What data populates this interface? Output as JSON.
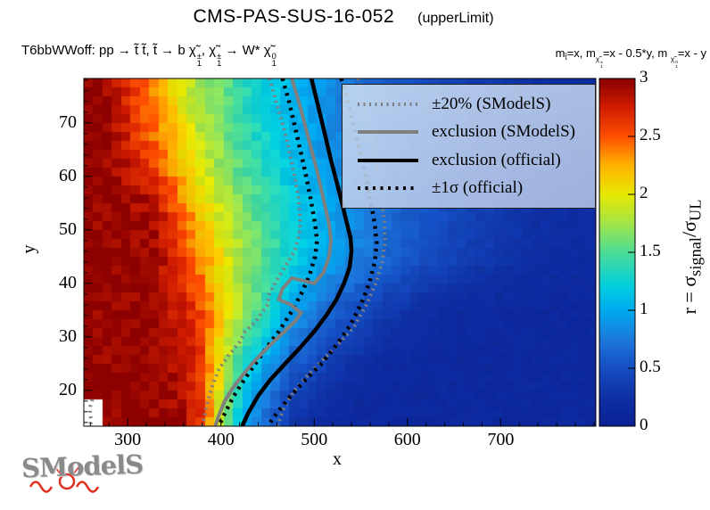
{
  "title": {
    "main": "CMS-PAS-SUS-16-052",
    "sub": "(upperLimit)"
  },
  "process_label": {
    "text": "T6bbWWoff: pp → t̃ t̃, t̃ → b χ̃1±, χ̃1± → W* χ̃10",
    "runs": [
      {
        "t": "T6bbWWoff: pp  → t̃ t̃, t̃  → b "
      },
      {
        "t": "χ̃",
        "sup": "±",
        "sub": "1"
      },
      {
        "t": ", "
      },
      {
        "t": "χ̃",
        "sup": "±",
        "sub": "1"
      },
      {
        "t": " → W* "
      },
      {
        "t": "χ̃",
        "sup": "0",
        "sub": "1"
      }
    ]
  },
  "mass_label": {
    "text": "mt̃=x, mχ̃1±=x - 0.5*y, mχ̃10=x - y",
    "runs": [
      {
        "t": "m"
      },
      {
        "t": "t̃",
        "sc": 0.62,
        "va": -0.35
      },
      {
        "t": "=x, m"
      },
      {
        "t": "χ̃",
        "sup": "±",
        "sub": "1",
        "sc": 0.62,
        "va": -0.6
      },
      {
        "t": "=x - 0.5*y, m "
      },
      {
        "t": "χ̃",
        "sup": "0",
        "sub": "1",
        "sc": 0.62,
        "va": -0.6
      },
      {
        "t": "=x - y"
      }
    ]
  },
  "watermark": {
    "text": "SModelS",
    "accent_color": "#e03020",
    "text_color": "#8a8a8a"
  },
  "legend": {
    "background": "rgba(205,223,243,0.87)",
    "background2": "rgba(180,196,229,0.87)",
    "items": [
      {
        "label": "±20% (SModelS)",
        "color": "#7f7f7f",
        "dash": "2 4.5",
        "lw": 4
      },
      {
        "label": "exclusion (SModelS)",
        "color": "#7f7f7f",
        "dash": "",
        "lw": 4
      },
      {
        "label": "exclusion (official)",
        "color": "#000000",
        "dash": "",
        "lw": 4
      },
      {
        "label": "±1σ (official)",
        "color": "#000000",
        "dash": "3 5.5",
        "lw": 4
      }
    ]
  },
  "chart_data": {
    "type": "heatmap",
    "title": "CMS-PAS-SUS-16-052 (upperLimit)",
    "xlabel": "x",
    "ylabel": "y",
    "zlabel": "r = σsignal/σUL",
    "zlabel_runs": [
      {
        "t": "r = σ"
      },
      {
        "t": "",
        "sub": "signal"
      },
      {
        "t": "/σ"
      },
      {
        "t": "",
        "sub": "UL"
      }
    ],
    "xlim": [
      253,
      802
    ],
    "ylim": [
      13.3,
      78.3
    ],
    "zlim": [
      0,
      3
    ],
    "x_ticks": [
      300,
      400,
      500,
      600,
      700
    ],
    "x_minor_step": 20,
    "y_ticks": [
      20,
      30,
      40,
      50,
      60,
      70
    ],
    "y_minor_step": 2,
    "z_ticks": [
      0,
      0.5,
      1,
      1.5,
      2,
      2.5,
      3
    ],
    "grid": true,
    "legend_position": "top-right-inside",
    "bin_size": {
      "x": 10,
      "y": 1.6667
    },
    "grid_x": [
      275,
      325,
      375,
      425,
      475,
      525,
      575,
      625,
      675,
      725,
      775
    ],
    "grid_y": [
      15,
      25,
      35,
      45,
      55,
      65,
      75
    ],
    "r_values": [
      [
        3.0,
        3.0,
        2.8,
        0.95,
        0.31,
        0.13,
        0.12,
        0.12,
        0.12,
        0.12,
        0.12
      ],
      [
        3.0,
        3.0,
        2.71,
        1.3,
        0.6,
        0.3,
        0.16,
        0.13,
        0.12,
        0.12,
        0.12
      ],
      [
        3.0,
        3.0,
        2.6,
        1.7,
        0.99,
        0.58,
        0.34,
        0.2,
        0.15,
        0.13,
        0.12
      ],
      [
        3.0,
        3.0,
        2.39,
        1.73,
        1.25,
        0.91,
        0.65,
        0.47,
        0.34,
        0.25,
        0.18
      ],
      [
        3.0,
        2.88,
        2.16,
        1.61,
        1.22,
        0.91,
        0.69,
        0.52,
        0.39,
        0.29,
        0.22
      ],
      [
        3.0,
        2.53,
        1.91,
        1.44,
        1.09,
        0.82,
        0.62,
        0.47,
        0.35,
        0.27,
        0.2
      ],
      [
        3.0,
        2.37,
        1.8,
        1.37,
        1.04,
        0.79,
        0.6,
        0.46,
        0.35,
        0.26,
        0.2
      ]
    ],
    "palette": [
      [
        0.0,
        "#0b2296"
      ],
      [
        0.08,
        "#0e2fa4"
      ],
      [
        0.17,
        "#1550c4"
      ],
      [
        0.25,
        "#1c7adc"
      ],
      [
        0.33,
        "#00a8ee"
      ],
      [
        0.4,
        "#00cfe2"
      ],
      [
        0.5,
        "#4cdc96"
      ],
      [
        0.58,
        "#9fe44c"
      ],
      [
        0.667,
        "#e8e800"
      ],
      [
        0.75,
        "#ffb400"
      ],
      [
        0.833,
        "#ff4f00"
      ],
      [
        0.92,
        "#d01c00"
      ],
      [
        1.0,
        "#8b0000"
      ]
    ],
    "masked_region": {
      "x": [
        253,
        272.5
      ],
      "y": [
        13.3,
        18.4
      ]
    },
    "contours": [
      {
        "name": "pm20_low",
        "legend": "±20% (SModelS)",
        "color": "#7f7f7f",
        "lw": 4,
        "dash": "2 4.5",
        "points": [
          [
            452,
            78.3
          ],
          [
            459,
            74
          ],
          [
            466,
            70
          ],
          [
            473,
            65
          ],
          [
            479,
            60
          ],
          [
            483,
            56
          ],
          [
            485,
            52
          ],
          [
            484,
            49
          ],
          [
            479,
            46
          ],
          [
            470,
            43.5
          ],
          [
            458,
            40
          ],
          [
            452,
            38
          ],
          [
            450,
            36
          ],
          [
            438,
            33
          ],
          [
            426,
            31
          ],
          [
            420,
            29
          ],
          [
            408,
            26.5
          ],
          [
            398,
            24
          ],
          [
            391,
            21
          ],
          [
            386,
            18
          ],
          [
            382,
            15
          ],
          [
            380,
            13.3
          ]
        ]
      },
      {
        "name": "pm20_high",
        "legend": "±20% (SModelS)",
        "color": "#7f7f7f",
        "lw": 4,
        "dash": "2 4.5",
        "points": [
          [
            547,
            78.3
          ],
          [
            553,
            74
          ],
          [
            559,
            69
          ],
          [
            566,
            63
          ],
          [
            571,
            57
          ],
          [
            575,
            52
          ],
          [
            576,
            48
          ],
          [
            573,
            44
          ],
          [
            566,
            40
          ],
          [
            556,
            36
          ],
          [
            543,
            32
          ],
          [
            528,
            29
          ],
          [
            511,
            26
          ],
          [
            494,
            23
          ],
          [
            479,
            20
          ],
          [
            468,
            17
          ],
          [
            462,
            14
          ],
          [
            461,
            13.3
          ]
        ]
      },
      {
        "name": "pm20_fragment",
        "legend": "±20% (SModelS)",
        "color": "#7f7f7f",
        "lw": 4,
        "dash": "2 4.5",
        "points": [
          [
            262,
            18.3
          ],
          [
            260,
            17
          ],
          [
            259.5,
            15.5
          ],
          [
            261,
            14.5
          ],
          [
            260,
            13.5
          ]
        ]
      },
      {
        "name": "pm1sigma_low",
        "legend": "±1σ (official)",
        "color": "#000000",
        "lw": 4.5,
        "dash": "3 5.5",
        "points": [
          [
            466,
            78.3
          ],
          [
            473,
            74
          ],
          [
            481,
            68
          ],
          [
            489,
            62
          ],
          [
            496,
            56
          ],
          [
            501,
            51
          ],
          [
            503,
            48
          ],
          [
            501,
            45
          ],
          [
            495,
            41.5
          ],
          [
            486,
            38
          ],
          [
            475,
            34.5
          ],
          [
            462,
            31
          ],
          [
            449,
            28
          ],
          [
            437,
            25
          ],
          [
            425,
            22
          ],
          [
            414,
            19
          ],
          [
            405,
            16
          ],
          [
            399,
            13.8
          ],
          [
            398,
            13.3
          ]
        ]
      },
      {
        "name": "pm1sigma_high",
        "legend": "±1σ (official)",
        "color": "#000000",
        "lw": 4.5,
        "dash": "3 5.5",
        "points": [
          [
            529,
            78.3
          ],
          [
            536,
            74
          ],
          [
            544,
            68
          ],
          [
            553,
            62
          ],
          [
            560,
            56
          ],
          [
            565,
            51
          ],
          [
            567,
            47.5
          ],
          [
            565,
            44
          ],
          [
            559,
            40
          ],
          [
            550,
            36
          ],
          [
            538,
            32
          ],
          [
            524,
            28.5
          ],
          [
            508,
            25
          ],
          [
            491,
            22
          ],
          [
            475,
            19
          ],
          [
            461,
            16
          ],
          [
            452,
            13.8
          ],
          [
            451,
            13.3
          ]
        ]
      },
      {
        "name": "exclusion_smodels",
        "legend": "exclusion (SModelS)",
        "color": "#7f7f7f",
        "lw": 4,
        "dash": "",
        "points": [
          [
            476,
            78.3
          ],
          [
            485,
            73
          ],
          [
            494,
            67
          ],
          [
            503,
            61
          ],
          [
            511,
            55
          ],
          [
            516,
            51
          ],
          [
            518,
            48
          ],
          [
            516,
            45
          ],
          [
            510,
            42
          ],
          [
            500,
            40
          ],
          [
            488,
            40.5
          ],
          [
            476,
            41
          ],
          [
            466,
            39
          ],
          [
            462,
            37
          ],
          [
            475,
            36
          ],
          [
            486,
            34.5
          ],
          [
            480,
            33
          ],
          [
            465,
            30.5
          ],
          [
            450,
            28
          ],
          [
            436,
            25.5
          ],
          [
            424,
            23
          ],
          [
            413,
            20.5
          ],
          [
            404,
            18
          ],
          [
            397,
            15
          ],
          [
            394,
            13.3
          ]
        ]
      },
      {
        "name": "exclusion_official",
        "legend": "exclusion (official)",
        "color": "#000000",
        "lw": 4.5,
        "dash": "",
        "points": [
          [
            497,
            78.3
          ],
          [
            503,
            74
          ],
          [
            510,
            69
          ],
          [
            518,
            63
          ],
          [
            527,
            57
          ],
          [
            534,
            52
          ],
          [
            539,
            48.5
          ],
          [
            540,
            46
          ],
          [
            538,
            43
          ],
          [
            532,
            40
          ],
          [
            524,
            37
          ],
          [
            513,
            34
          ],
          [
            500,
            31
          ],
          [
            485,
            28
          ],
          [
            469,
            25
          ],
          [
            453,
            22
          ],
          [
            440,
            19
          ],
          [
            430,
            16
          ],
          [
            424,
            13.8
          ],
          [
            423,
            13.3
          ]
        ]
      }
    ]
  }
}
